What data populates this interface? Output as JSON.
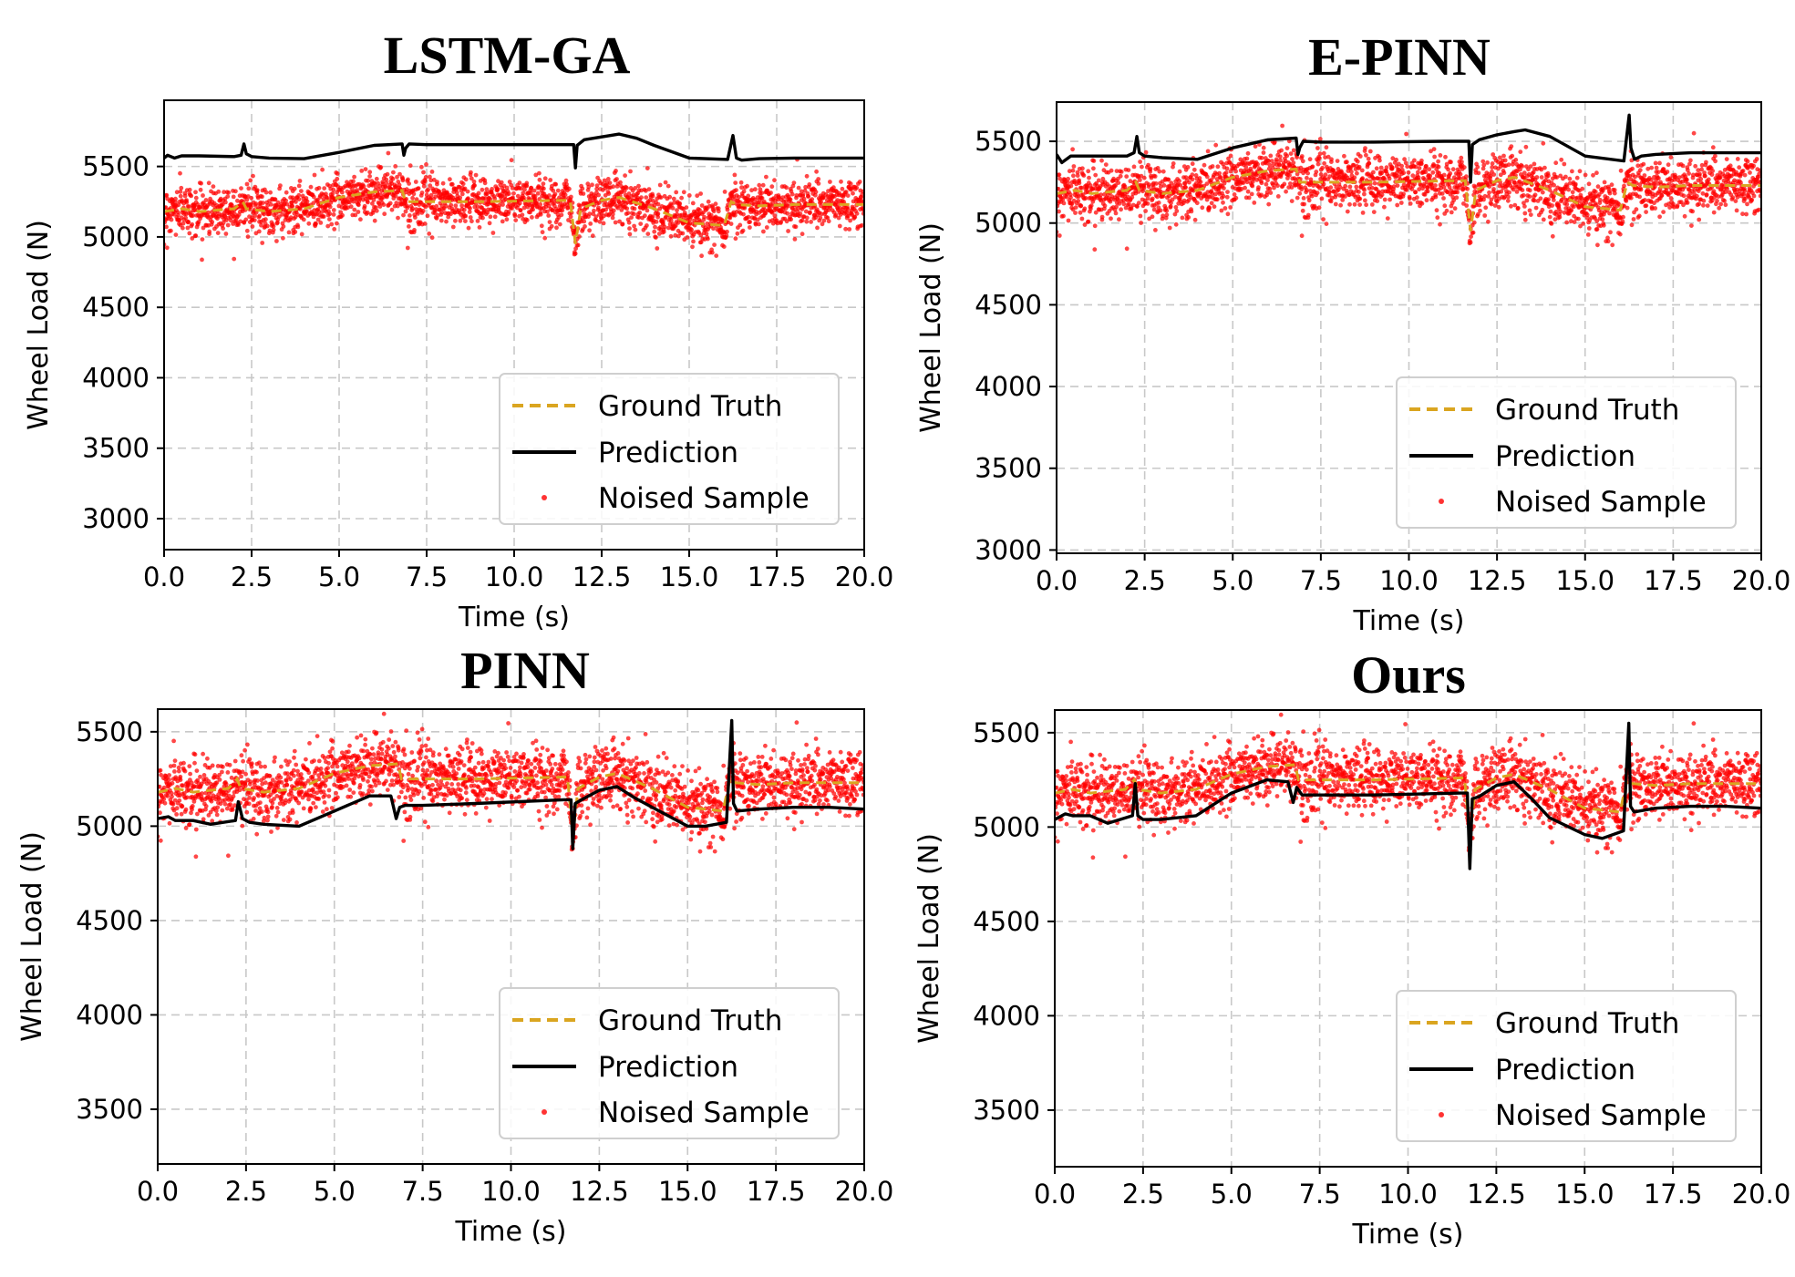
{
  "chart_data": [
    {
      "type": "line",
      "title": "LSTM-GA",
      "xlabel": "Time (s)",
      "ylabel": "Wheel Load (N)",
      "xlim": [
        0,
        20
      ],
      "ylim": [
        2780,
        5970
      ],
      "xticks": [
        "0.0",
        "2.5",
        "5.0",
        "7.5",
        "10.0",
        "12.5",
        "15.0",
        "17.5",
        "20.0"
      ],
      "yticks": [
        "3000",
        "3500",
        "4000",
        "4500",
        "5000",
        "5500"
      ],
      "grid": true,
      "legend": {
        "position": "lower right",
        "entries": [
          "Ground Truth",
          "Prediction",
          "Noised Sample"
        ]
      },
      "series": [
        {
          "name": "Ground Truth",
          "style": "dashed",
          "color": "#daa520",
          "x": [
            0,
            0.5,
            1,
            2,
            2.25,
            2.35,
            3,
            4,
            5,
            6,
            6.8,
            6.9,
            7.5,
            9,
            11.6,
            11.75,
            11.9,
            12.5,
            13,
            14,
            15,
            16,
            16.2,
            16.35,
            17,
            18,
            19,
            20
          ],
          "y": [
            5180,
            5200,
            5180,
            5200,
            5250,
            5200,
            5180,
            5200,
            5280,
            5320,
            5330,
            5250,
            5250,
            5250,
            5260,
            4950,
            5200,
            5260,
            5280,
            5200,
            5100,
            5080,
            5250,
            5230,
            5220,
            5230,
            5230,
            5230
          ]
        },
        {
          "name": "Prediction",
          "style": "solid",
          "color": "#000000",
          "x": [
            0,
            0.1,
            0.3,
            0.5,
            1,
            2,
            2.2,
            2.28,
            2.35,
            2.5,
            3,
            4,
            5,
            6,
            6.8,
            6.85,
            6.9,
            7.0,
            7.5,
            9,
            11,
            11.7,
            11.75,
            11.8,
            12.0,
            12.5,
            13,
            13.5,
            14,
            15,
            16.1,
            16.25,
            16.35,
            16.5,
            17,
            18,
            19,
            20
          ],
          "y": [
            5560,
            5580,
            5560,
            5575,
            5575,
            5570,
            5580,
            5660,
            5590,
            5570,
            5560,
            5555,
            5600,
            5650,
            5660,
            5580,
            5630,
            5660,
            5655,
            5655,
            5655,
            5655,
            5490,
            5650,
            5690,
            5710,
            5730,
            5700,
            5650,
            5560,
            5550,
            5720,
            5560,
            5545,
            5555,
            5560,
            5560,
            5560
          ]
        },
        {
          "name": "Noised Sample",
          "style": "scatter",
          "color": "#ff0000",
          "noise_sd": 85
        }
      ]
    },
    {
      "type": "line",
      "title": "E-PINN",
      "xlabel": "Time (s)",
      "ylabel": "Wheel Load (N)",
      "xlim": [
        0,
        20
      ],
      "ylim": [
        2980,
        5740
      ],
      "xticks": [
        "0.0",
        "2.5",
        "5.0",
        "7.5",
        "10.0",
        "12.5",
        "15.0",
        "17.5",
        "20.0"
      ],
      "yticks": [
        "3000",
        "3500",
        "4000",
        "4500",
        "5000",
        "5500"
      ],
      "grid": true,
      "legend": {
        "position": "lower right",
        "entries": [
          "Ground Truth",
          "Prediction",
          "Noised Sample"
        ]
      },
      "series": [
        {
          "name": "Ground Truth",
          "style": "dashed",
          "color": "#daa520",
          "x": [
            0,
            0.5,
            1,
            2,
            2.25,
            2.35,
            3,
            4,
            5,
            6,
            6.8,
            6.9,
            7.5,
            9,
            11.6,
            11.75,
            11.9,
            12.5,
            13,
            14,
            15,
            16,
            16.2,
            16.35,
            17,
            18,
            19,
            20
          ],
          "y": [
            5180,
            5200,
            5180,
            5200,
            5250,
            5200,
            5180,
            5200,
            5280,
            5320,
            5330,
            5250,
            5250,
            5250,
            5260,
            4950,
            5200,
            5260,
            5280,
            5200,
            5100,
            5080,
            5250,
            5230,
            5220,
            5230,
            5230,
            5230
          ]
        },
        {
          "name": "Prediction",
          "style": "solid",
          "color": "#000000",
          "x": [
            0,
            0.15,
            0.4,
            1,
            2,
            2.2,
            2.28,
            2.35,
            2.5,
            3,
            4,
            5,
            6,
            6.8,
            6.85,
            6.9,
            7.0,
            7.5,
            9,
            11,
            11.7,
            11.75,
            11.8,
            12.0,
            12.5,
            13,
            13.3,
            14,
            15,
            16.1,
            16.25,
            16.3,
            16.4,
            16.6,
            17,
            18,
            19,
            20
          ],
          "y": [
            5420,
            5370,
            5410,
            5410,
            5410,
            5430,
            5530,
            5430,
            5410,
            5400,
            5390,
            5460,
            5510,
            5520,
            5420,
            5460,
            5500,
            5495,
            5495,
            5500,
            5500,
            5250,
            5480,
            5510,
            5540,
            5560,
            5570,
            5530,
            5410,
            5380,
            5660,
            5460,
            5390,
            5410,
            5420,
            5430,
            5430,
            5430
          ]
        },
        {
          "name": "Noised Sample",
          "style": "scatter",
          "color": "#ff0000",
          "noise_sd": 85
        }
      ]
    },
    {
      "type": "line",
      "title": "PINN",
      "xlabel": "Time (s)",
      "ylabel": "Wheel Load (N)",
      "xlim": [
        0,
        20
      ],
      "ylim": [
        3210,
        5620
      ],
      "xticks": [
        "0.0",
        "2.5",
        "5.0",
        "7.5",
        "10.0",
        "12.5",
        "15.0",
        "17.5",
        "20.0"
      ],
      "yticks": [
        "3500",
        "4000",
        "4500",
        "5000",
        "5500"
      ],
      "grid": true,
      "legend": {
        "position": "lower right",
        "entries": [
          "Ground Truth",
          "Prediction",
          "Noised Sample"
        ]
      },
      "series": [
        {
          "name": "Ground Truth",
          "style": "dashed",
          "color": "#daa520",
          "x": [
            0,
            0.5,
            1,
            2,
            2.25,
            2.35,
            3,
            4,
            5,
            6,
            6.8,
            6.9,
            7.5,
            9,
            11.6,
            11.75,
            11.9,
            12.5,
            13,
            14,
            15,
            16,
            16.2,
            16.35,
            17,
            18,
            19,
            20
          ],
          "y": [
            5180,
            5200,
            5180,
            5200,
            5250,
            5200,
            5180,
            5200,
            5280,
            5320,
            5330,
            5250,
            5250,
            5250,
            5260,
            4950,
            5200,
            5260,
            5280,
            5200,
            5100,
            5080,
            5250,
            5230,
            5220,
            5230,
            5230,
            5230
          ]
        },
        {
          "name": "Prediction",
          "style": "solid",
          "color": "#000000",
          "x": [
            0,
            0.3,
            0.5,
            1,
            1.5,
            2.2,
            2.28,
            2.4,
            2.6,
            3,
            4,
            5,
            6,
            6.6,
            6.75,
            6.85,
            7.0,
            7.5,
            9,
            11.5,
            11.7,
            11.75,
            11.82,
            12.0,
            12.5,
            13,
            13.5,
            14,
            15,
            15.5,
            16.1,
            16.25,
            16.3,
            16.4,
            17,
            18,
            19,
            20
          ],
          "y": [
            5040,
            5050,
            5030,
            5030,
            5010,
            5030,
            5130,
            5040,
            5020,
            5010,
            5000,
            5080,
            5160,
            5160,
            5040,
            5100,
            5110,
            5110,
            5120,
            5140,
            5140,
            4880,
            5120,
            5140,
            5190,
            5210,
            5150,
            5100,
            5000,
            5000,
            5020,
            5560,
            5120,
            5080,
            5090,
            5100,
            5100,
            5090
          ]
        },
        {
          "name": "Noised Sample",
          "style": "scatter",
          "color": "#ff0000",
          "noise_sd": 85
        }
      ]
    },
    {
      "type": "line",
      "title": "Ours",
      "xlabel": "Time (s)",
      "ylabel": "Wheel Load (N)",
      "xlim": [
        0,
        20
      ],
      "ylim": [
        3200,
        5620
      ],
      "xticks": [
        "0.0",
        "2.5",
        "5.0",
        "7.5",
        "10.0",
        "12.5",
        "15.0",
        "17.5",
        "20.0"
      ],
      "yticks": [
        "3500",
        "4000",
        "4500",
        "5000",
        "5500"
      ],
      "grid": true,
      "legend": {
        "position": "lower right",
        "entries": [
          "Ground Truth",
          "Prediction",
          "Noised Sample"
        ]
      },
      "series": [
        {
          "name": "Ground Truth",
          "style": "dashed",
          "color": "#daa520",
          "x": [
            0,
            0.5,
            1,
            2,
            2.25,
            2.35,
            3,
            4,
            5,
            6,
            6.8,
            6.9,
            7.5,
            9,
            11.6,
            11.75,
            11.9,
            12.5,
            13,
            14,
            15,
            16,
            16.2,
            16.35,
            17,
            18,
            19,
            20
          ],
          "y": [
            5180,
            5200,
            5180,
            5200,
            5250,
            5200,
            5180,
            5200,
            5280,
            5320,
            5330,
            5250,
            5250,
            5250,
            5260,
            4950,
            5200,
            5260,
            5280,
            5200,
            5100,
            5080,
            5250,
            5230,
            5220,
            5230,
            5230,
            5230
          ]
        },
        {
          "name": "Prediction",
          "style": "solid",
          "color": "#000000",
          "x": [
            0,
            0.3,
            0.5,
            1,
            1.5,
            2.2,
            2.28,
            2.35,
            2.5,
            3,
            4,
            5,
            6,
            6.6,
            6.75,
            6.85,
            7.0,
            7.5,
            9,
            11.5,
            11.68,
            11.75,
            11.82,
            12.0,
            12.5,
            13,
            13.5,
            14,
            15,
            15.5,
            16.1,
            16.25,
            16.3,
            16.4,
            17,
            18,
            19,
            20
          ],
          "y": [
            5040,
            5070,
            5060,
            5060,
            5020,
            5060,
            5230,
            5060,
            5040,
            5040,
            5060,
            5180,
            5250,
            5240,
            5130,
            5210,
            5170,
            5170,
            5170,
            5180,
            5180,
            4780,
            5150,
            5160,
            5220,
            5240,
            5150,
            5050,
            4960,
            4940,
            4980,
            5550,
            5110,
            5080,
            5100,
            5110,
            5110,
            5100
          ]
        },
        {
          "name": "Noised Sample",
          "style": "scatter",
          "color": "#ff0000",
          "noise_sd": 85
        }
      ]
    }
  ]
}
